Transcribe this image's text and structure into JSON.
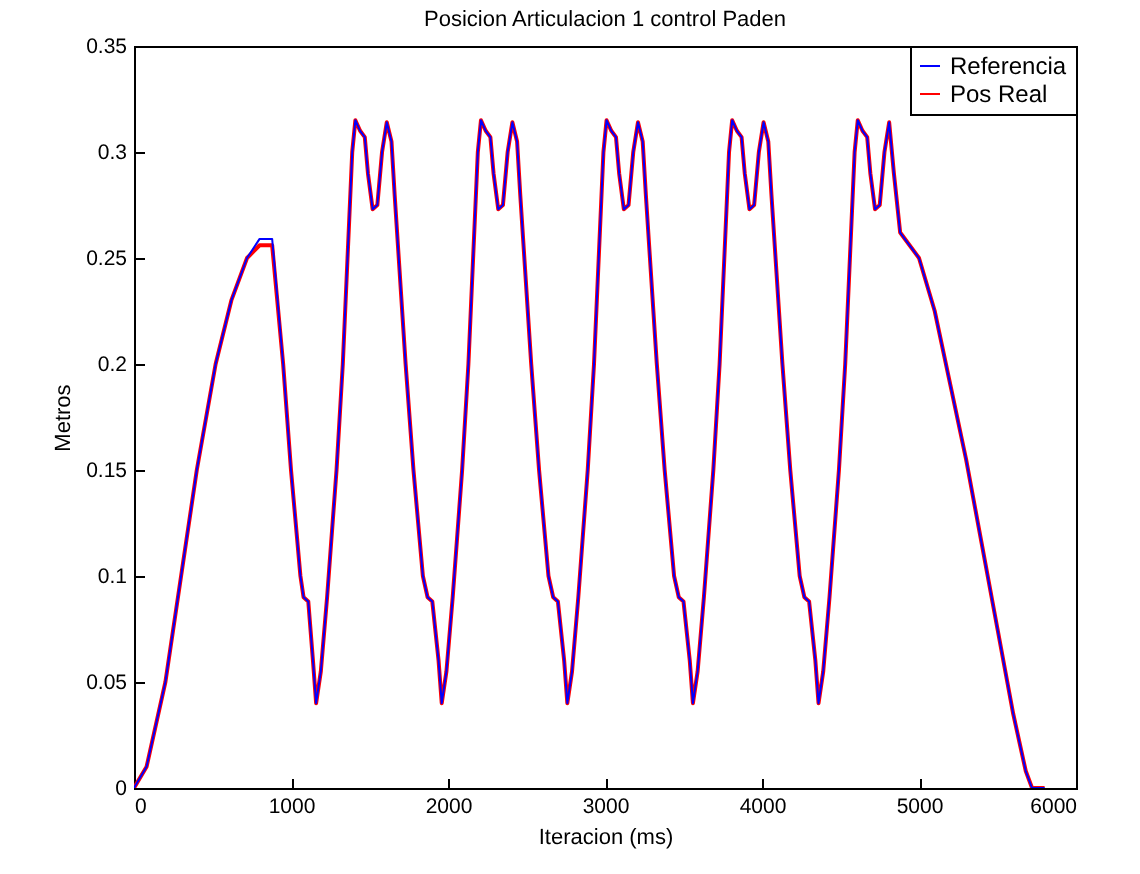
{
  "chart_data": {
    "type": "line",
    "title": "Posicion Articulacion 1 control Paden",
    "xlabel": "Iteracion (ms)",
    "ylabel": "Metros",
    "x": [
      0,
      80,
      200,
      300,
      400,
      520,
      620,
      720,
      800,
      880,
      950,
      1000,
      1060,
      1080,
      1110,
      1140,
      1160,
      1190,
      1230,
      1290,
      1330,
      1360,
      1390,
      1410,
      1440,
      1470,
      1490,
      1520,
      1550,
      1580,
      1610,
      1640,
      1660,
      1730,
      1780,
      1840,
      1870,
      1900,
      1940,
      1960,
      1990,
      2030,
      2090,
      2130,
      2160,
      2190,
      2210,
      2240,
      2270,
      2290,
      2320,
      2350,
      2380,
      2410,
      2440,
      2460,
      2530,
      2580,
      2640,
      2670,
      2700,
      2740,
      2760,
      2790,
      2830,
      2890,
      2930,
      2960,
      2990,
      3010,
      3040,
      3070,
      3090,
      3120,
      3150,
      3180,
      3210,
      3240,
      3260,
      3330,
      3380,
      3440,
      3470,
      3500,
      3540,
      3560,
      3590,
      3630,
      3690,
      3730,
      3760,
      3790,
      3810,
      3840,
      3870,
      3890,
      3920,
      3950,
      3980,
      4010,
      4040,
      4060,
      4130,
      4180,
      4240,
      4270,
      4300,
      4340,
      4360,
      4390,
      4430,
      4490,
      4530,
      4560,
      4590,
      4610,
      4640,
      4670,
      4690,
      4720,
      4750,
      4780,
      4810,
      4840,
      4880,
      4920,
      5000,
      5100,
      5200,
      5300,
      5400,
      5500,
      5600,
      5680,
      5720,
      5800
    ],
    "series": [
      {
        "name": "Referencia",
        "color": "#0000ff",
        "values": [
          0,
          0.01,
          0.05,
          0.1,
          0.15,
          0.2,
          0.23,
          0.25,
          0.259,
          0.259,
          0.2,
          0.15,
          0.1,
          0.09,
          0.088,
          0.06,
          0.04,
          0.055,
          0.09,
          0.15,
          0.2,
          0.25,
          0.3,
          0.315,
          0.31,
          0.307,
          0.29,
          0.273,
          0.275,
          0.3,
          0.314,
          0.305,
          0.28,
          0.2,
          0.15,
          0.1,
          0.09,
          0.088,
          0.06,
          0.04,
          0.055,
          0.09,
          0.15,
          0.2,
          0.25,
          0.3,
          0.315,
          0.31,
          0.307,
          0.29,
          0.273,
          0.275,
          0.3,
          0.314,
          0.305,
          0.28,
          0.2,
          0.15,
          0.1,
          0.09,
          0.088,
          0.06,
          0.04,
          0.055,
          0.09,
          0.15,
          0.2,
          0.25,
          0.3,
          0.315,
          0.31,
          0.307,
          0.29,
          0.273,
          0.275,
          0.3,
          0.314,
          0.305,
          0.28,
          0.2,
          0.15,
          0.1,
          0.09,
          0.088,
          0.06,
          0.04,
          0.055,
          0.09,
          0.15,
          0.2,
          0.25,
          0.3,
          0.315,
          0.31,
          0.307,
          0.29,
          0.273,
          0.275,
          0.3,
          0.314,
          0.305,
          0.28,
          0.2,
          0.15,
          0.1,
          0.09,
          0.088,
          0.06,
          0.04,
          0.055,
          0.09,
          0.15,
          0.2,
          0.25,
          0.3,
          0.315,
          0.31,
          0.307,
          0.29,
          0.273,
          0.275,
          0.3,
          0.314,
          0.29,
          0.262,
          0.258,
          0.25,
          0.225,
          0.19,
          0.155,
          0.115,
          0.075,
          0.035,
          0.008,
          0,
          0
        ]
      },
      {
        "name": "Pos Real",
        "color": "#ff0000",
        "values": [
          0,
          0.01,
          0.05,
          0.1,
          0.15,
          0.2,
          0.23,
          0.25,
          0.256,
          0.256,
          0.2,
          0.15,
          0.1,
          0.09,
          0.088,
          0.06,
          0.04,
          0.055,
          0.09,
          0.15,
          0.2,
          0.25,
          0.3,
          0.315,
          0.31,
          0.307,
          0.29,
          0.273,
          0.275,
          0.3,
          0.314,
          0.305,
          0.28,
          0.2,
          0.15,
          0.1,
          0.09,
          0.088,
          0.06,
          0.04,
          0.055,
          0.09,
          0.15,
          0.2,
          0.25,
          0.3,
          0.315,
          0.31,
          0.307,
          0.29,
          0.273,
          0.275,
          0.3,
          0.314,
          0.305,
          0.28,
          0.2,
          0.15,
          0.1,
          0.09,
          0.088,
          0.06,
          0.04,
          0.055,
          0.09,
          0.15,
          0.2,
          0.25,
          0.3,
          0.315,
          0.31,
          0.307,
          0.29,
          0.273,
          0.275,
          0.3,
          0.314,
          0.305,
          0.28,
          0.2,
          0.15,
          0.1,
          0.09,
          0.088,
          0.06,
          0.04,
          0.055,
          0.09,
          0.15,
          0.2,
          0.25,
          0.3,
          0.315,
          0.31,
          0.307,
          0.29,
          0.273,
          0.275,
          0.3,
          0.314,
          0.305,
          0.28,
          0.2,
          0.15,
          0.1,
          0.09,
          0.088,
          0.06,
          0.04,
          0.055,
          0.09,
          0.15,
          0.2,
          0.25,
          0.3,
          0.315,
          0.31,
          0.307,
          0.29,
          0.273,
          0.275,
          0.3,
          0.314,
          0.29,
          0.262,
          0.258,
          0.25,
          0.225,
          0.19,
          0.155,
          0.115,
          0.075,
          0.035,
          0.008,
          0,
          0
        ]
      }
    ],
    "xlim": [
      0,
      6000
    ],
    "xticks": [
      0,
      1000,
      2000,
      3000,
      4000,
      5000,
      6000
    ],
    "ylim": [
      0,
      0.35
    ],
    "yticks": [
      0,
      0.05,
      0.1,
      0.15,
      0.2,
      0.25,
      0.3,
      0.35
    ],
    "grid": false,
    "legend": "top right",
    "marker": "none",
    "line_style": "solid"
  }
}
